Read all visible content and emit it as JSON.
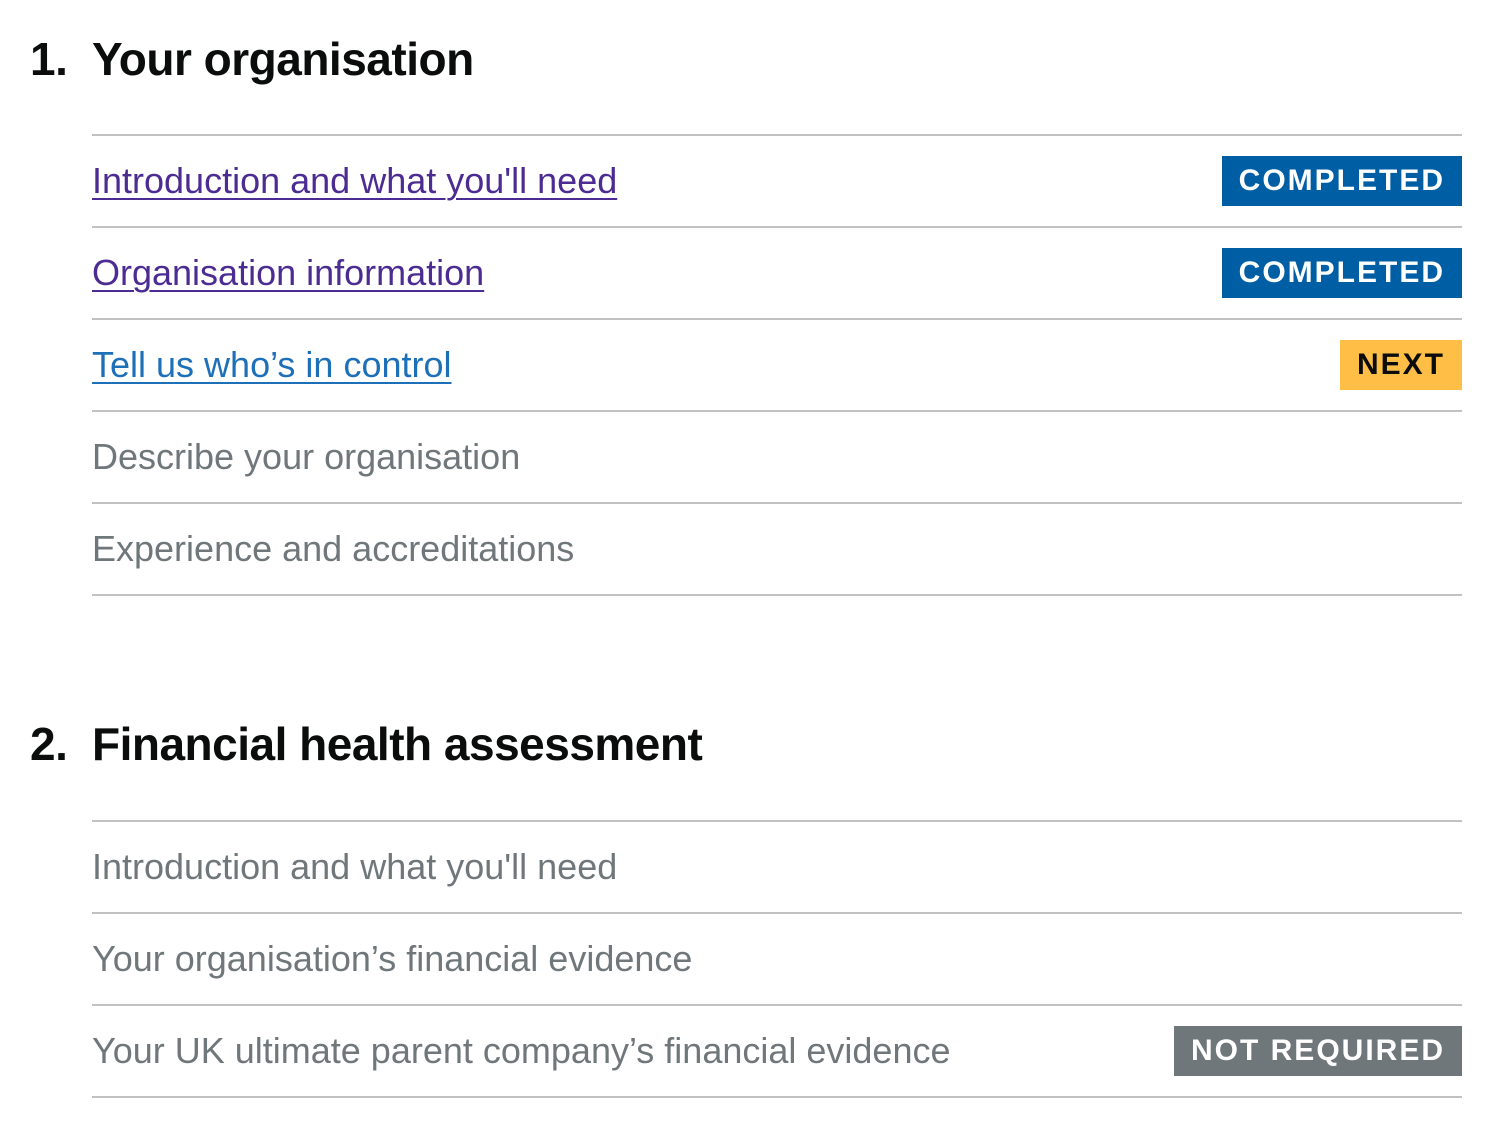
{
  "colors": {
    "completed": "#005ea5",
    "next": "#ffbf47",
    "not_required": "#6f777b",
    "link": "#1d70b8",
    "visited": "#4c2c92"
  },
  "sections": [
    {
      "number": "1.",
      "title": "Your organisation",
      "items": [
        {
          "label": "Introduction and what you'll need",
          "link": true,
          "visited": true,
          "status": "COMPLETED"
        },
        {
          "label": "Organisation information",
          "link": true,
          "visited": true,
          "status": "COMPLETED"
        },
        {
          "label": "Tell us who’s in control",
          "link": true,
          "visited": false,
          "status": "NEXT"
        },
        {
          "label": "Describe your organisation",
          "link": false
        },
        {
          "label": "Experience and accreditations",
          "link": false
        }
      ]
    },
    {
      "number": "2.",
      "title": "Financial health assessment",
      "items": [
        {
          "label": "Introduction and what you'll need",
          "link": false
        },
        {
          "label": "Your organisation’s financial evidence",
          "link": false
        },
        {
          "label": "Your UK ultimate parent company’s financial evidence",
          "link": false,
          "status": "NOT REQUIRED"
        }
      ]
    }
  ]
}
